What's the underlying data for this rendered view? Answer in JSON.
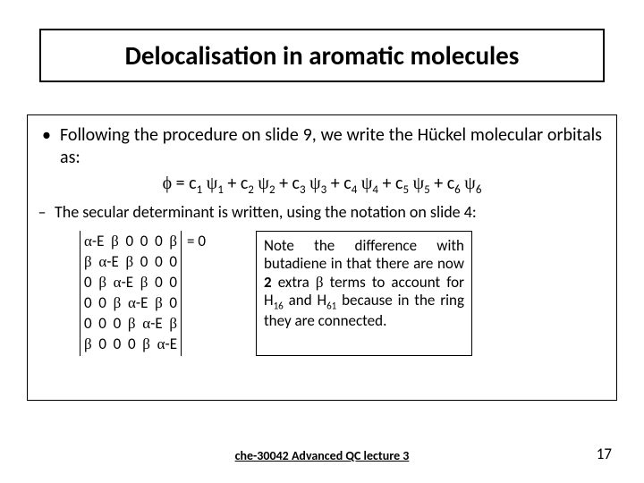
{
  "title": "Delocalisation in aromatic molecules",
  "bullet1_text": "Following the procedure on slide 9, we write the Hückel molecular orbitals as:",
  "equation": {
    "phi": "ϕ",
    "eq": " = c",
    "psi": "ψ",
    "plus": " + c",
    "subs": [
      "1",
      "2",
      "3",
      "4",
      "5",
      "6"
    ]
  },
  "bullet2_text": "The secular determinant is written, using the notation on slide 4:",
  "matrix": {
    "alpha": "α",
    "beta": "β",
    "E": "-E",
    "zero": "0",
    "rows": [
      [
        "αE",
        "β",
        "0",
        "0",
        "0",
        "β"
      ],
      [
        "β",
        "αE",
        "β",
        "0",
        "0",
        "0"
      ],
      [
        "0",
        "β",
        "αE",
        "β",
        "0",
        "0"
      ],
      [
        "0",
        "0",
        "β",
        "αE",
        "β",
        "0"
      ],
      [
        "0",
        "0",
        "0",
        "β",
        "αE",
        "β"
      ],
      [
        "β",
        "0",
        "0",
        "0",
        "β",
        "αE"
      ]
    ],
    "equals": "= 0"
  },
  "note_pre": "Note the difference with butadiene in that there are now ",
  "note_bold1": "2",
  "note_mid1": " extra ",
  "note_beta": "β",
  "note_mid2": " terms to account for H",
  "note_sub1": "16",
  "note_mid3": " and H",
  "note_sub2": "61",
  "note_post": " because in the ring they are connected.",
  "footer": "che-30042 Advanced QC lecture 3",
  "pagenum": "17",
  "colors": {
    "border": "#000000",
    "text": "#000000",
    "bg": "#ffffff"
  },
  "fonts": {
    "title_size": 29,
    "body_size": 20,
    "matrix_size": 17
  }
}
